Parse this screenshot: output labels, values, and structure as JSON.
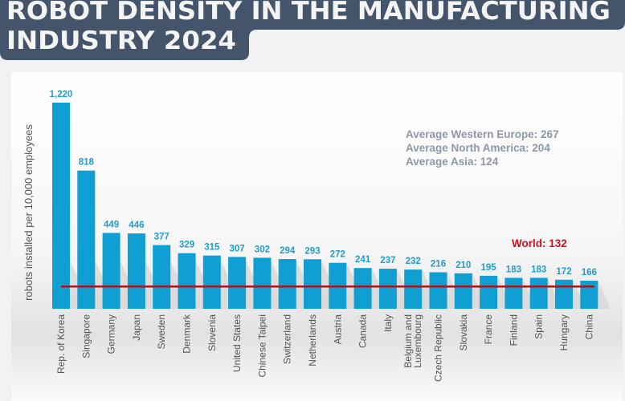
{
  "header": {
    "title_line1": "ROBOT DENSITY IN THE MANUFACTURING",
    "title_line2": "INDUSTRY 2024"
  },
  "colors": {
    "header_bg": "#44546a",
    "bar": "#0f9fd3",
    "value_label": "#1e9dcf",
    "world_line": "#a8141c",
    "world_label": "#d0101a",
    "averages": "#8d98a8"
  },
  "chart_data": {
    "type": "bar",
    "title": "ROBOT DENSITY IN THE MANUFACTURING INDUSTRY 2024",
    "ylabel": "robots installed per 10,000 employees",
    "xlabel": "",
    "ylim": [
      0,
      1220
    ],
    "grid": false,
    "categories": [
      "Rep. of Korea",
      "Singapore",
      "Germany",
      "Japan",
      "Sweden",
      "Denmark",
      "Slovenia",
      "United States",
      "Chinese Taipei",
      "Switzerland",
      "Netherlands",
      "Austria",
      "Canada",
      "Italy",
      "Belgium and Luxembourg",
      "Czech Republic",
      "Slovakia",
      "France",
      "Finland",
      "Spain",
      "Hungary",
      "China"
    ],
    "category_lines": [
      [
        "Rep. of Korea"
      ],
      [
        "Singapore"
      ],
      [
        "Germany"
      ],
      [
        "Japan"
      ],
      [
        "Sweden"
      ],
      [
        "Denmark"
      ],
      [
        "Slovenia"
      ],
      [
        "United States"
      ],
      [
        "Chinese Taipei"
      ],
      [
        "Switzerland"
      ],
      [
        "Netherlands"
      ],
      [
        "Austria"
      ],
      [
        "Canada"
      ],
      [
        "Italy"
      ],
      [
        "Belgium and",
        "Luxembourg"
      ],
      [
        "Czech Republic"
      ],
      [
        "Slovakia"
      ],
      [
        "France"
      ],
      [
        "Finland"
      ],
      [
        "Spain"
      ],
      [
        "Hungary"
      ],
      [
        "China"
      ]
    ],
    "values": [
      1220,
      818,
      449,
      446,
      377,
      329,
      315,
      307,
      302,
      294,
      293,
      272,
      241,
      237,
      232,
      216,
      210,
      195,
      183,
      183,
      172,
      166
    ],
    "value_labels": [
      "1,220",
      "818",
      "449",
      "446",
      "377",
      "329",
      "315",
      "307",
      "302",
      "294",
      "293",
      "272",
      "241",
      "237",
      "232",
      "216",
      "210",
      "195",
      "183",
      "183",
      "172",
      "166"
    ],
    "reference_line": {
      "label": "World: 132",
      "value": 132
    },
    "annotations": [
      "Average Western Europe: 267",
      "Average North America: 204",
      "Average Asia: 124"
    ]
  }
}
